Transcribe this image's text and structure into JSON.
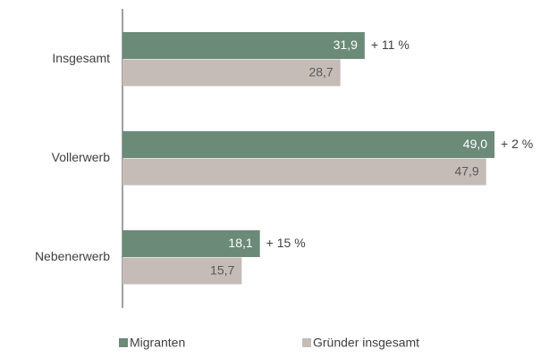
{
  "chart_data": {
    "type": "barh",
    "categories": [
      "Insgesamt",
      "Vollerwerb",
      "Nebenerwerb"
    ],
    "series": [
      {
        "name": "Migranten",
        "color": "#6b8a78",
        "values": [
          31.9,
          49.0,
          18.1
        ],
        "value_labels": [
          "31,9",
          "49,0",
          "18,1"
        ],
        "label_color": "#ffffff"
      },
      {
        "name": "Gründer insgesamt",
        "color": "#c5bcb8",
        "values": [
          28.7,
          47.9,
          15.7
        ],
        "value_labels": [
          "28,7",
          "47,9",
          "15,7"
        ],
        "label_color": "#595959"
      }
    ],
    "annotations": [
      "+ 11 %",
      "+ 2 %",
      "+ 15 %"
    ],
    "xlim": [
      0,
      55
    ]
  }
}
